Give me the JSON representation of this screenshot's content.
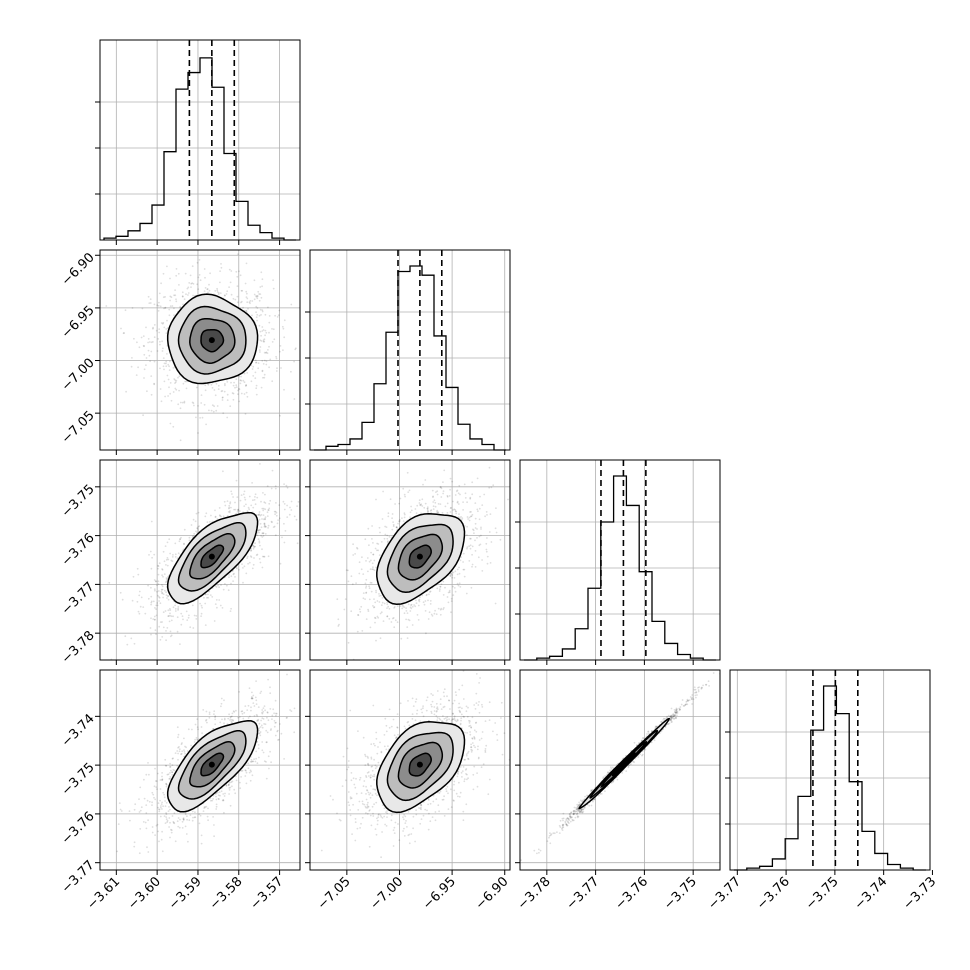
{
  "chart_data": {
    "type": "corner",
    "n_params": 4,
    "params": [
      {
        "range": [
          -3.614,
          -3.565
        ],
        "ticks": [
          -3.61,
          -3.6,
          -3.59,
          -3.58,
          -3.57
        ],
        "tick_labels": [
          "−3.61",
          "−3.60",
          "−3.59",
          "−3.58",
          "−3.57"
        ],
        "median": -3.5866,
        "q16": -3.5921,
        "q84": -3.5811,
        "hist_counts": [
          0.01,
          0.02,
          0.05,
          0.09,
          0.19,
          0.48,
          0.82,
          0.91,
          0.99,
          0.83,
          0.47,
          0.21,
          0.08,
          0.04,
          0.01,
          0.0
        ]
      },
      {
        "range": [
          -7.085,
          -6.895
        ],
        "ticks": [
          -7.05,
          -7.0,
          -6.95,
          -6.9
        ],
        "tick_labels": [
          "−7.05",
          "−7.00",
          "−6.95",
          "−6.90"
        ],
        "median": -6.9806,
        "q16": -7.0014,
        "q84": -6.9598,
        "hist_counts": [
          0.0,
          0.02,
          0.03,
          0.06,
          0.15,
          0.36,
          0.64,
          0.97,
          1.0,
          0.95,
          0.62,
          0.34,
          0.14,
          0.06,
          0.03,
          0.0
        ]
      },
      {
        "range": [
          -3.7855,
          -3.7445
        ],
        "ticks": [
          -3.78,
          -3.77,
          -3.76,
          -3.75
        ],
        "tick_labels": [
          "−3.78",
          "−3.77",
          "−3.76",
          "−3.75"
        ],
        "median": -3.7643,
        "q16": -3.7689,
        "q84": -3.7597,
        "hist_counts": [
          0.0,
          0.01,
          0.02,
          0.06,
          0.17,
          0.39,
          0.75,
          1.0,
          0.84,
          0.48,
          0.21,
          0.09,
          0.03,
          0.01,
          0.0
        ]
      },
      {
        "range": [
          -3.7715,
          -3.7305
        ],
        "ticks": [
          -3.77,
          -3.76,
          -3.75,
          -3.74,
          -3.73
        ],
        "tick_labels": [
          "−3.77",
          "−3.76",
          "−3.75",
          "−3.74",
          "−3.73"
        ],
        "median": -3.7499,
        "q16": -3.7545,
        "q84": -3.7453,
        "hist_counts": [
          0.0,
          0.01,
          0.02,
          0.06,
          0.17,
          0.4,
          0.76,
          1.0,
          0.85,
          0.48,
          0.21,
          0.09,
          0.03,
          0.01,
          0.0
        ]
      }
    ],
    "pairs": [
      {
        "x": 0,
        "y": 1,
        "cx": -3.5866,
        "cy": -6.9806,
        "sx": 0.0055,
        "sy": 0.0208,
        "rho": 0.0
      },
      {
        "x": 0,
        "y": 2,
        "cx": -3.5866,
        "cy": -3.7643,
        "sx": 0.0055,
        "sy": 0.0046,
        "rho": 0.7
      },
      {
        "x": 1,
        "y": 2,
        "cx": -6.9806,
        "cy": -3.7643,
        "sx": 0.0208,
        "sy": 0.0046,
        "rho": 0.45
      },
      {
        "x": 0,
        "y": 3,
        "cx": -3.5866,
        "cy": -3.7499,
        "sx": 0.0055,
        "sy": 0.0046,
        "rho": 0.7
      },
      {
        "x": 1,
        "y": 3,
        "cx": -6.9806,
        "cy": -3.7499,
        "sx": 0.0208,
        "sy": 0.0046,
        "rho": 0.45
      },
      {
        "x": 2,
        "y": 3,
        "cx": -3.7643,
        "cy": -3.7499,
        "sx": 0.0046,
        "sy": 0.0046,
        "rho": 0.995
      }
    ],
    "contour_levels_sigma": [
      0.5,
      1.0,
      1.5,
      2.0
    ],
    "grid": true
  }
}
